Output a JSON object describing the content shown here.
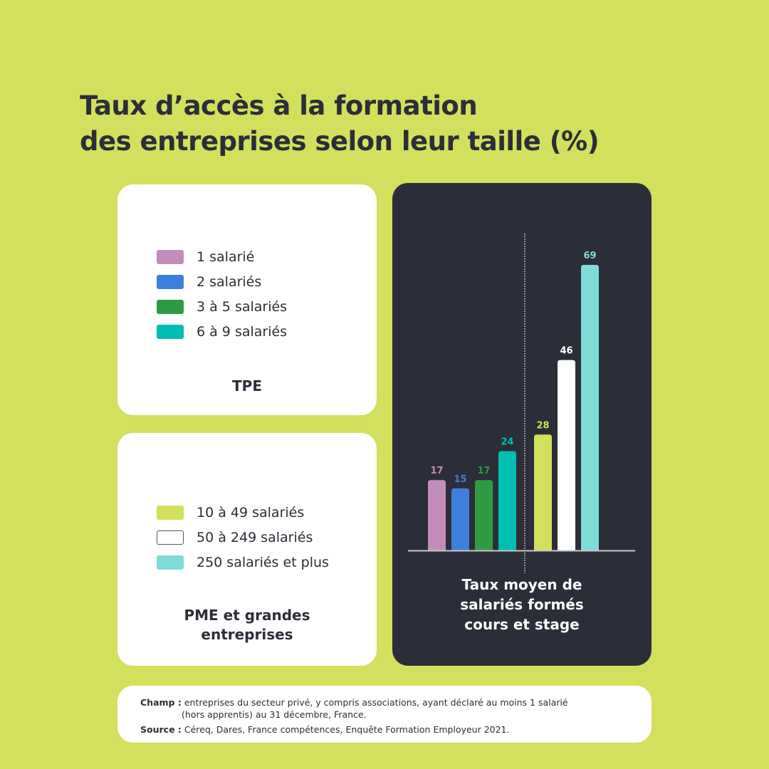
{
  "title_line1": "Taux d’accès à la formation",
  "title_line2": "des entreprises selon leur taille (%)",
  "tpe": {
    "label": "TPE",
    "legend": [
      {
        "label": "1 salarié",
        "color": "#c48cbb"
      },
      {
        "label": "2 salariés",
        "color": "#3e7fde"
      },
      {
        "label": "3 à 5 salariés",
        "color": "#2e9b44"
      },
      {
        "label": "6 à 9 salariés",
        "color": "#00bdb3"
      }
    ]
  },
  "pme": {
    "label_line1": "PME et grandes",
    "label_line2": "entreprises",
    "legend": [
      {
        "label": "10 à 49 salariés",
        "color": "#d2e05d"
      },
      {
        "label": "50 à 249 salariés",
        "color": "#ffffff"
      },
      {
        "label": "250 salariés et plus",
        "color": "#80dcd8"
      }
    ]
  },
  "chart_data": {
    "type": "bar",
    "title": "Taux moyen de salariés formés cours et stage",
    "caption_lines": [
      "Taux moyen de",
      "salariés formés",
      "cours et stage"
    ],
    "categories": [
      "1 salarié",
      "2 salariés",
      "3 à 5 salariés",
      "6 à 9 salariés",
      "10 à 49 salariés",
      "50 à 249 salariés",
      "250 salariés et plus"
    ],
    "groups": [
      "TPE",
      "TPE",
      "TPE",
      "TPE",
      "PME et grandes entreprises",
      "PME et grandes entreprises",
      "PME et grandes entreprises"
    ],
    "values": [
      17,
      15,
      17,
      24,
      28,
      46,
      69
    ],
    "colors": [
      "#c48cbb",
      "#3e7fde",
      "#2e9b44",
      "#00bdb3",
      "#d2e05d",
      "#ffffff",
      "#80dcd8"
    ],
    "label_colors": [
      "#c48cbb",
      "#3e7fde",
      "#2e9b44",
      "#00bdb3",
      "#d2e05d",
      "#ffffff",
      "#80dcd8"
    ],
    "ylim": [
      0,
      70
    ],
    "xlabel": "",
    "ylabel": "%",
    "grid": false
  },
  "notes": {
    "champ_label": "Champ :",
    "champ_line1": "entreprises du secteur privé, y compris associations, ayant déclaré au moins 1 salarié",
    "champ_line2": "(hors apprentis) au 31 décembre, France.",
    "source_label": "Source :",
    "source_text": "Céreq, Dares, France compétences, Enquête Formation Employeur 2021."
  }
}
